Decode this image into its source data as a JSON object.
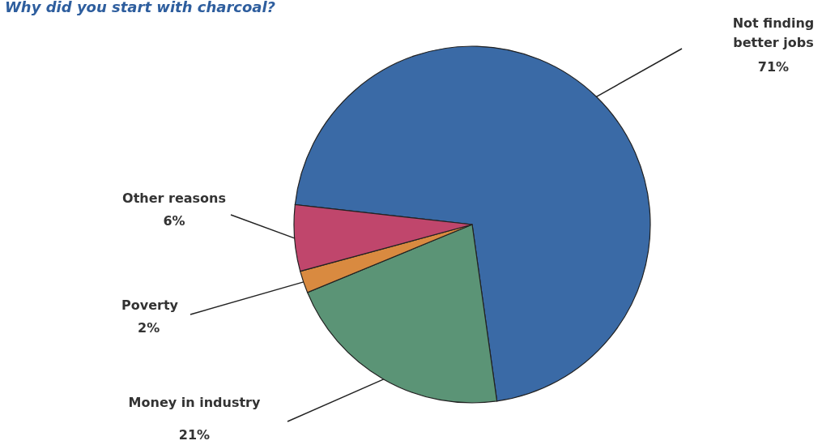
{
  "chart_data": {
    "type": "pie",
    "title": "Why did you start with charcoal?",
    "categories": [
      "Not finding better jobs",
      "Money in industry",
      "Poverty",
      "Other reasons"
    ],
    "values": [
      71,
      21,
      2,
      6
    ],
    "value_labels": [
      "71%",
      "21%",
      "2%",
      "6%"
    ],
    "colors": [
      "#3a6aa6",
      "#5b9476",
      "#d98a40",
      "#c0466c"
    ]
  }
}
